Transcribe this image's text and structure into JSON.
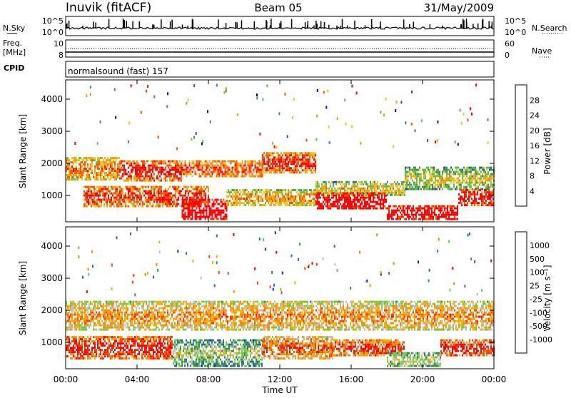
{
  "header": {
    "station": "Inuvik (fitACF)",
    "beam": "Beam 05",
    "date": "31/May/2009"
  },
  "strip": {
    "nsky_label": "N.Sky",
    "nsearch_label": "N.Search",
    "nsky_left_top": "10^5",
    "nsky_left_bottom": "10^0",
    "nsky_right_top": "10^5",
    "nsky_right_bottom": "10^0",
    "freq_label_1": "Freq.",
    "freq_label_2": "[MHz]",
    "freq_top": "10",
    "freq_bottom": "8",
    "nave_label": "Nave",
    "nave_top": "60",
    "nave_bottom": "0",
    "cpid_label": "CPID",
    "mode_text": "normalsound (fast) 157"
  },
  "colors": {
    "power_scale": [
      "#0000ff",
      "#2d4fb0",
      "#3f8f5a",
      "#59c04c",
      "#e7c626",
      "#ff9900",
      "#ff5000",
      "#ff0000"
    ],
    "velocity_scale": [
      "#0a2ed8",
      "#2c6a9a",
      "#3c8c52",
      "#5ed04a",
      "#c0c0b8",
      "#f0b000",
      "#ff8a00",
      "#ff4000",
      "#ff0000"
    ],
    "ground_scatter": "#b8b8b0"
  },
  "chart_data": [
    {
      "type": "heatmap",
      "panel": "power",
      "ylabel": "Slant Range [km]",
      "xlabel": "Time UT",
      "x_ticks": [
        "00:00",
        "04:00",
        "08:00",
        "12:00",
        "16:00",
        "20:00",
        "00:00"
      ],
      "y_ticks": [
        1000,
        2000,
        3000,
        4000
      ],
      "ylim": [
        180,
        4600
      ],
      "xlim_hours": [
        0,
        24
      ],
      "colorbar_label": "Power [dB]",
      "colorbar_ticks": [
        "28",
        "24",
        "20",
        "16",
        "12",
        "8",
        "4"
      ],
      "bands": [
        {
          "t": [
            0,
            3
          ],
          "r": [
            1500,
            2200
          ],
          "level": 0.55
        },
        {
          "t": [
            3,
            6.5
          ],
          "r": [
            1500,
            2100
          ],
          "level": 0.75
        },
        {
          "t": [
            6.5,
            11
          ],
          "r": [
            1600,
            2100
          ],
          "level": 0.65
        },
        {
          "t": [
            11,
            14
          ],
          "r": [
            1700,
            2350
          ],
          "level": 0.7
        },
        {
          "t": [
            14,
            19
          ],
          "r": [
            1000,
            1450
          ],
          "level": 0.4
        },
        {
          "t": [
            19,
            24
          ],
          "r": [
            1200,
            1900
          ],
          "level": 0.35
        },
        {
          "t": [
            1,
            8
          ],
          "r": [
            700,
            1300
          ],
          "level": 0.7
        },
        {
          "t": [
            6.5,
            9
          ],
          "r": [
            250,
            900
          ],
          "level": 0.95
        },
        {
          "t": [
            9,
            14
          ],
          "r": [
            700,
            1200
          ],
          "level": 0.5
        },
        {
          "t": [
            14,
            18
          ],
          "r": [
            600,
            1100
          ],
          "level": 0.9
        },
        {
          "t": [
            18,
            22
          ],
          "r": [
            250,
            700
          ],
          "level": 0.9
        },
        {
          "t": [
            22,
            24
          ],
          "r": [
            700,
            1200
          ],
          "level": 0.8
        }
      ]
    },
    {
      "type": "heatmap",
      "panel": "velocity",
      "ylabel": "Slant Range [km]",
      "xlabel": "Time UT",
      "x_ticks": [
        "00:00",
        "04:00",
        "08:00",
        "12:00",
        "16:00",
        "20:00",
        "00:00"
      ],
      "y_ticks": [
        1000,
        2000,
        3000,
        4000
      ],
      "ylim": [
        180,
        4600
      ],
      "xlim_hours": [
        0,
        24
      ],
      "colorbar_label": "Velocity [m s⁻¹]",
      "colorbar_ticks": [
        "1000",
        "500",
        "100",
        "25",
        "-25",
        "-100",
        "-500",
        "-1000"
      ],
      "bands": [
        {
          "t": [
            0,
            24
          ],
          "r": [
            1400,
            2300
          ],
          "level": 0.5
        },
        {
          "t": [
            0,
            6
          ],
          "r": [
            500,
            1200
          ],
          "level": 0.75
        },
        {
          "t": [
            6,
            11
          ],
          "r": [
            300,
            1100
          ],
          "level": 0.25
        },
        {
          "t": [
            11,
            15
          ],
          "r": [
            500,
            1200
          ],
          "level": 0.6
        },
        {
          "t": [
            15,
            19
          ],
          "r": [
            600,
            1100
          ],
          "level": 0.7
        },
        {
          "t": [
            18,
            21
          ],
          "r": [
            250,
            700
          ],
          "level": 0.3
        },
        {
          "t": [
            21,
            24
          ],
          "r": [
            600,
            1100
          ],
          "level": 0.75
        }
      ]
    }
  ]
}
